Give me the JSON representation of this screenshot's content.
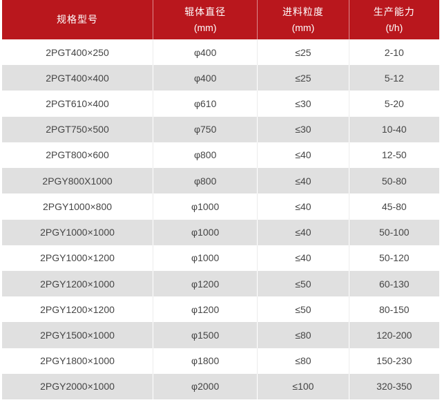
{
  "chart_data": {
    "type": "table",
    "columns": [
      {
        "title": "规格型号",
        "unit": ""
      },
      {
        "title": "辊体直径",
        "unit": "(mm)"
      },
      {
        "title": "进料粒度",
        "unit": "(mm)"
      },
      {
        "title": "生产能力",
        "unit": "(t/h)"
      }
    ],
    "rows": [
      [
        "2PGT400×250",
        "φ400",
        "≤25",
        "2-10"
      ],
      [
        "2PGT400×400",
        "φ400",
        "≤25",
        "5-12"
      ],
      [
        "2PGT610×400",
        "φ610",
        "≤30",
        "5-20"
      ],
      [
        "2PGT750×500",
        "φ750",
        "≤30",
        "10-40"
      ],
      [
        "2PGT800×600",
        "φ800",
        "≤40",
        "12-50"
      ],
      [
        "2PGY800X1000",
        "φ800",
        "≤40",
        "50-80"
      ],
      [
        "2PGY1000×800",
        "φ1000",
        "≤40",
        "45-80"
      ],
      [
        "2PGY1000×1000",
        "φ1000",
        "≤40",
        "50-100"
      ],
      [
        "2PGY1000×1200",
        "φ1000",
        "≤40",
        "50-120"
      ],
      [
        "2PGY1200×1000",
        "φ1200",
        "≤50",
        "60-130"
      ],
      [
        "2PGY1200×1200",
        "φ1200",
        "≤50",
        "80-150"
      ],
      [
        "2PGY1500×1000",
        "φ1500",
        "≤80",
        "120-200"
      ],
      [
        "2PGY1800×1000",
        "φ1800",
        "≤80",
        "150-230"
      ],
      [
        "2PGY2000×1000",
        "φ2000",
        "≤100",
        "320-350"
      ]
    ]
  },
  "colors": {
    "header_bg": "#b9171d",
    "header_text": "#ffffff",
    "row_bg": "#ffffff",
    "row_alt_bg": "#e0e0e0",
    "body_text": "#454545",
    "divider_light": "#ececec"
  }
}
